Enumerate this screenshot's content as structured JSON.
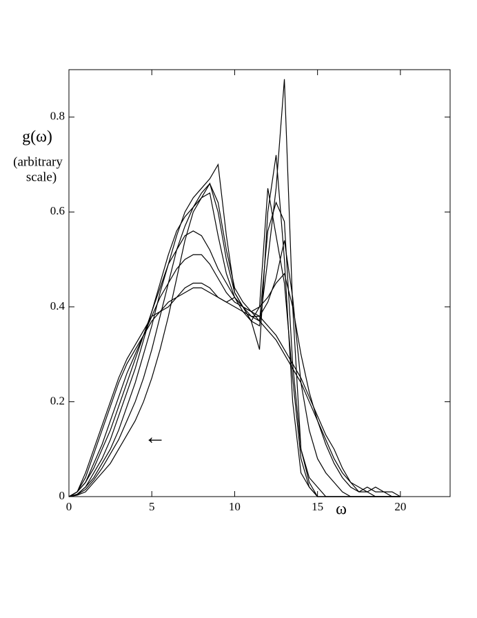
{
  "chart_data": {
    "type": "line",
    "ylabel": "g(ω)",
    "ylabel_note": [
      "(arbitrary",
      "scale)"
    ],
    "xlabel": "ω",
    "annotations": [
      "←"
    ],
    "x": [
      0,
      0.5,
      1,
      1.5,
      2,
      2.5,
      3,
      3.5,
      4,
      4.5,
      5,
      5.5,
      6,
      6.5,
      7,
      7.5,
      8,
      8.5,
      9,
      9.5,
      10,
      10.5,
      11,
      11.5,
      12,
      12.5,
      13,
      13.5,
      14,
      14.5,
      15,
      15.5,
      16,
      16.5,
      17,
      17.5,
      18,
      18.5,
      19,
      19.5,
      20
    ],
    "series": [
      {
        "color": "#000000",
        "values": [
          0,
          0.01,
          0.05,
          0.1,
          0.15,
          0.2,
          0.25,
          0.29,
          0.32,
          0.35,
          0.38,
          0.39,
          0.41,
          0.42,
          0.43,
          0.44,
          0.44,
          0.43,
          0.42,
          0.41,
          0.4,
          0.39,
          0.38,
          0.37,
          0.35,
          0.33,
          0.3,
          0.27,
          0.24,
          0.2,
          0.16,
          0.12,
          0.08,
          0.05,
          0.03,
          0.01,
          0.02,
          0.01,
          0.01,
          0.01,
          0
        ]
      },
      {
        "color": "#000000",
        "values": [
          0,
          0.01,
          0.04,
          0.09,
          0.14,
          0.19,
          0.24,
          0.28,
          0.31,
          0.34,
          0.37,
          0.39,
          0.4,
          0.42,
          0.44,
          0.45,
          0.45,
          0.44,
          0.42,
          0.41,
          0.42,
          0.4,
          0.39,
          0.38,
          0.36,
          0.34,
          0.31,
          0.28,
          0.25,
          0.21,
          0.17,
          0.13,
          0.1,
          0.06,
          0.03,
          0.02,
          0.01,
          0.02,
          0.01,
          0,
          0
        ]
      },
      {
        "color": "#000000",
        "values": [
          0,
          0.01,
          0.03,
          0.07,
          0.11,
          0.16,
          0.21,
          0.26,
          0.3,
          0.34,
          0.38,
          0.42,
          0.45,
          0.48,
          0.5,
          0.51,
          0.51,
          0.49,
          0.46,
          0.43,
          0.41,
          0.4,
          0.39,
          0.4,
          0.42,
          0.45,
          0.47,
          0.4,
          0.3,
          0.22,
          0.16,
          0.11,
          0.07,
          0.04,
          0.02,
          0.01,
          0.01,
          0,
          0,
          0,
          0
        ]
      },
      {
        "color": "#000000",
        "values": [
          0,
          0.01,
          0.03,
          0.06,
          0.1,
          0.14,
          0.19,
          0.24,
          0.29,
          0.34,
          0.39,
          0.44,
          0.49,
          0.52,
          0.55,
          0.56,
          0.55,
          0.52,
          0.48,
          0.45,
          0.42,
          0.4,
          0.38,
          0.38,
          0.41,
          0.46,
          0.54,
          0.42,
          0.24,
          0.14,
          0.08,
          0.05,
          0.03,
          0.01,
          0,
          0,
          0,
          0,
          0,
          0,
          0
        ]
      },
      {
        "color": "#000000",
        "values": [
          0,
          0.005,
          0.02,
          0.05,
          0.08,
          0.12,
          0.17,
          0.22,
          0.27,
          0.33,
          0.39,
          0.45,
          0.51,
          0.56,
          0.59,
          0.61,
          0.63,
          0.64,
          0.55,
          0.47,
          0.42,
          0.39,
          0.37,
          0.36,
          0.5,
          0.65,
          0.88,
          0.4,
          0.1,
          0.04,
          0.02,
          0,
          0,
          0,
          0,
          0,
          0,
          0,
          0,
          0,
          0
        ]
      },
      {
        "color": "#000000",
        "values": [
          0,
          0.005,
          0.02,
          0.04,
          0.07,
          0.1,
          0.14,
          0.19,
          0.24,
          0.3,
          0.36,
          0.43,
          0.49,
          0.55,
          0.6,
          0.63,
          0.65,
          0.67,
          0.7,
          0.55,
          0.43,
          0.4,
          0.37,
          0.31,
          0.6,
          0.72,
          0.5,
          0.2,
          0.05,
          0.02,
          0,
          0,
          0,
          0,
          0,
          0,
          0,
          0,
          0,
          0,
          0
        ]
      },
      {
        "color": "#000000",
        "values": [
          0,
          0.003,
          0.01,
          0.03,
          0.05,
          0.07,
          0.1,
          0.13,
          0.16,
          0.2,
          0.25,
          0.31,
          0.38,
          0.46,
          0.54,
          0.6,
          0.63,
          0.66,
          0.6,
          0.5,
          0.43,
          0.4,
          0.37,
          0.4,
          0.65,
          0.55,
          0.45,
          0.25,
          0.08,
          0.02,
          0,
          0,
          0,
          0,
          0,
          0,
          0,
          0,
          0,
          0,
          0
        ]
      },
      {
        "color": "#000000",
        "values": [
          0,
          0.004,
          0.015,
          0.035,
          0.06,
          0.09,
          0.12,
          0.16,
          0.2,
          0.25,
          0.31,
          0.38,
          0.45,
          0.52,
          0.57,
          0.61,
          0.64,
          0.66,
          0.62,
          0.52,
          0.44,
          0.41,
          0.39,
          0.37,
          0.56,
          0.62,
          0.58,
          0.28,
          0.1,
          0.03,
          0,
          0,
          0,
          0,
          0,
          0,
          0,
          0,
          0,
          0,
          0
        ]
      }
    ],
    "xlim": [
      0,
      23
    ],
    "ylim": [
      0,
      0.9
    ],
    "xticks": [
      0,
      5,
      10,
      15,
      20
    ],
    "yticks": [
      0,
      0.2,
      0.4,
      0.6,
      0.8
    ]
  }
}
